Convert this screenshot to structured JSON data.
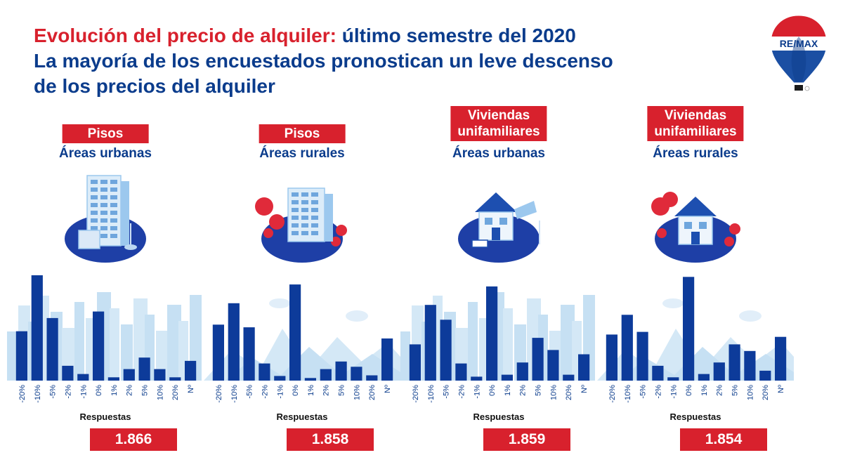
{
  "title": {
    "line1_red": "Evolución del precio de alquiler:",
    "line1_blue": " último semestre del 2020",
    "line2": "La mayoría de los encuestados pronostican un leve descenso",
    "line3": "de los precios del alquiler"
  },
  "logo": {
    "text": "RE/MAX",
    "icon": "hot-air-balloon-logo"
  },
  "colors": {
    "brand_red": "#d8212d",
    "brand_blue": "#0b3c8c",
    "bar": "#0d3b9a",
    "background_shapes": "#d4e8f6"
  },
  "responses_label": "Respuestas",
  "chart_data": [
    {
      "type": "bar",
      "title_lines": [
        "Pisos"
      ],
      "subtitle": "Áreas urbanas",
      "illustration": "apartment-tower-urban-icon",
      "categories": [
        "-20%",
        "-10%",
        "-5%",
        "-2%",
        "-1%",
        "0%",
        "1%",
        "2%",
        "5%",
        "10%",
        "20%",
        "Nº"
      ],
      "values": [
        150,
        320,
        190,
        45,
        20,
        210,
        10,
        35,
        70,
        35,
        10,
        60
      ],
      "total": "1.866"
    },
    {
      "type": "bar",
      "title_lines": [
        "Pisos"
      ],
      "subtitle": "Áreas rurales",
      "illustration": "apartment-building-rural-icon",
      "categories": [
        "-20%",
        "-10%",
        "-5%",
        "-2%",
        "-1%",
        "0%",
        "1%",
        "2%",
        "5%",
        "10%",
        "20%",
        "Nº"
      ],
      "values": [
        170,
        235,
        162,
        52,
        14,
        292,
        8,
        35,
        58,
        42,
        16,
        128
      ],
      "total": "1.858"
    },
    {
      "type": "bar",
      "title_lines": [
        "Viviendas",
        "unifamiliares"
      ],
      "subtitle": "Áreas urbanas",
      "illustration": "single-family-house-urban-icon",
      "categories": [
        "-20%",
        "-10%",
        "-5%",
        "-2%",
        "-1%",
        "0%",
        "1%",
        "2%",
        "5%",
        "10%",
        "20%",
        "Nº"
      ],
      "values": [
        110,
        230,
        185,
        52,
        12,
        286,
        18,
        55,
        130,
        93,
        18,
        80
      ],
      "total": "1.859"
    },
    {
      "type": "bar",
      "title_lines": [
        "Viviendas",
        "unifamiliares"
      ],
      "subtitle": "Áreas rurales",
      "illustration": "single-family-house-rural-icon",
      "categories": [
        "-20%",
        "-10%",
        "-5%",
        "-2%",
        "-1%",
        "0%",
        "1%",
        "2%",
        "5%",
        "10%",
        "20%",
        "Nº"
      ],
      "values": [
        140,
        200,
        148,
        45,
        10,
        315,
        20,
        55,
        110,
        90,
        30,
        133
      ],
      "total": "1.854"
    }
  ]
}
